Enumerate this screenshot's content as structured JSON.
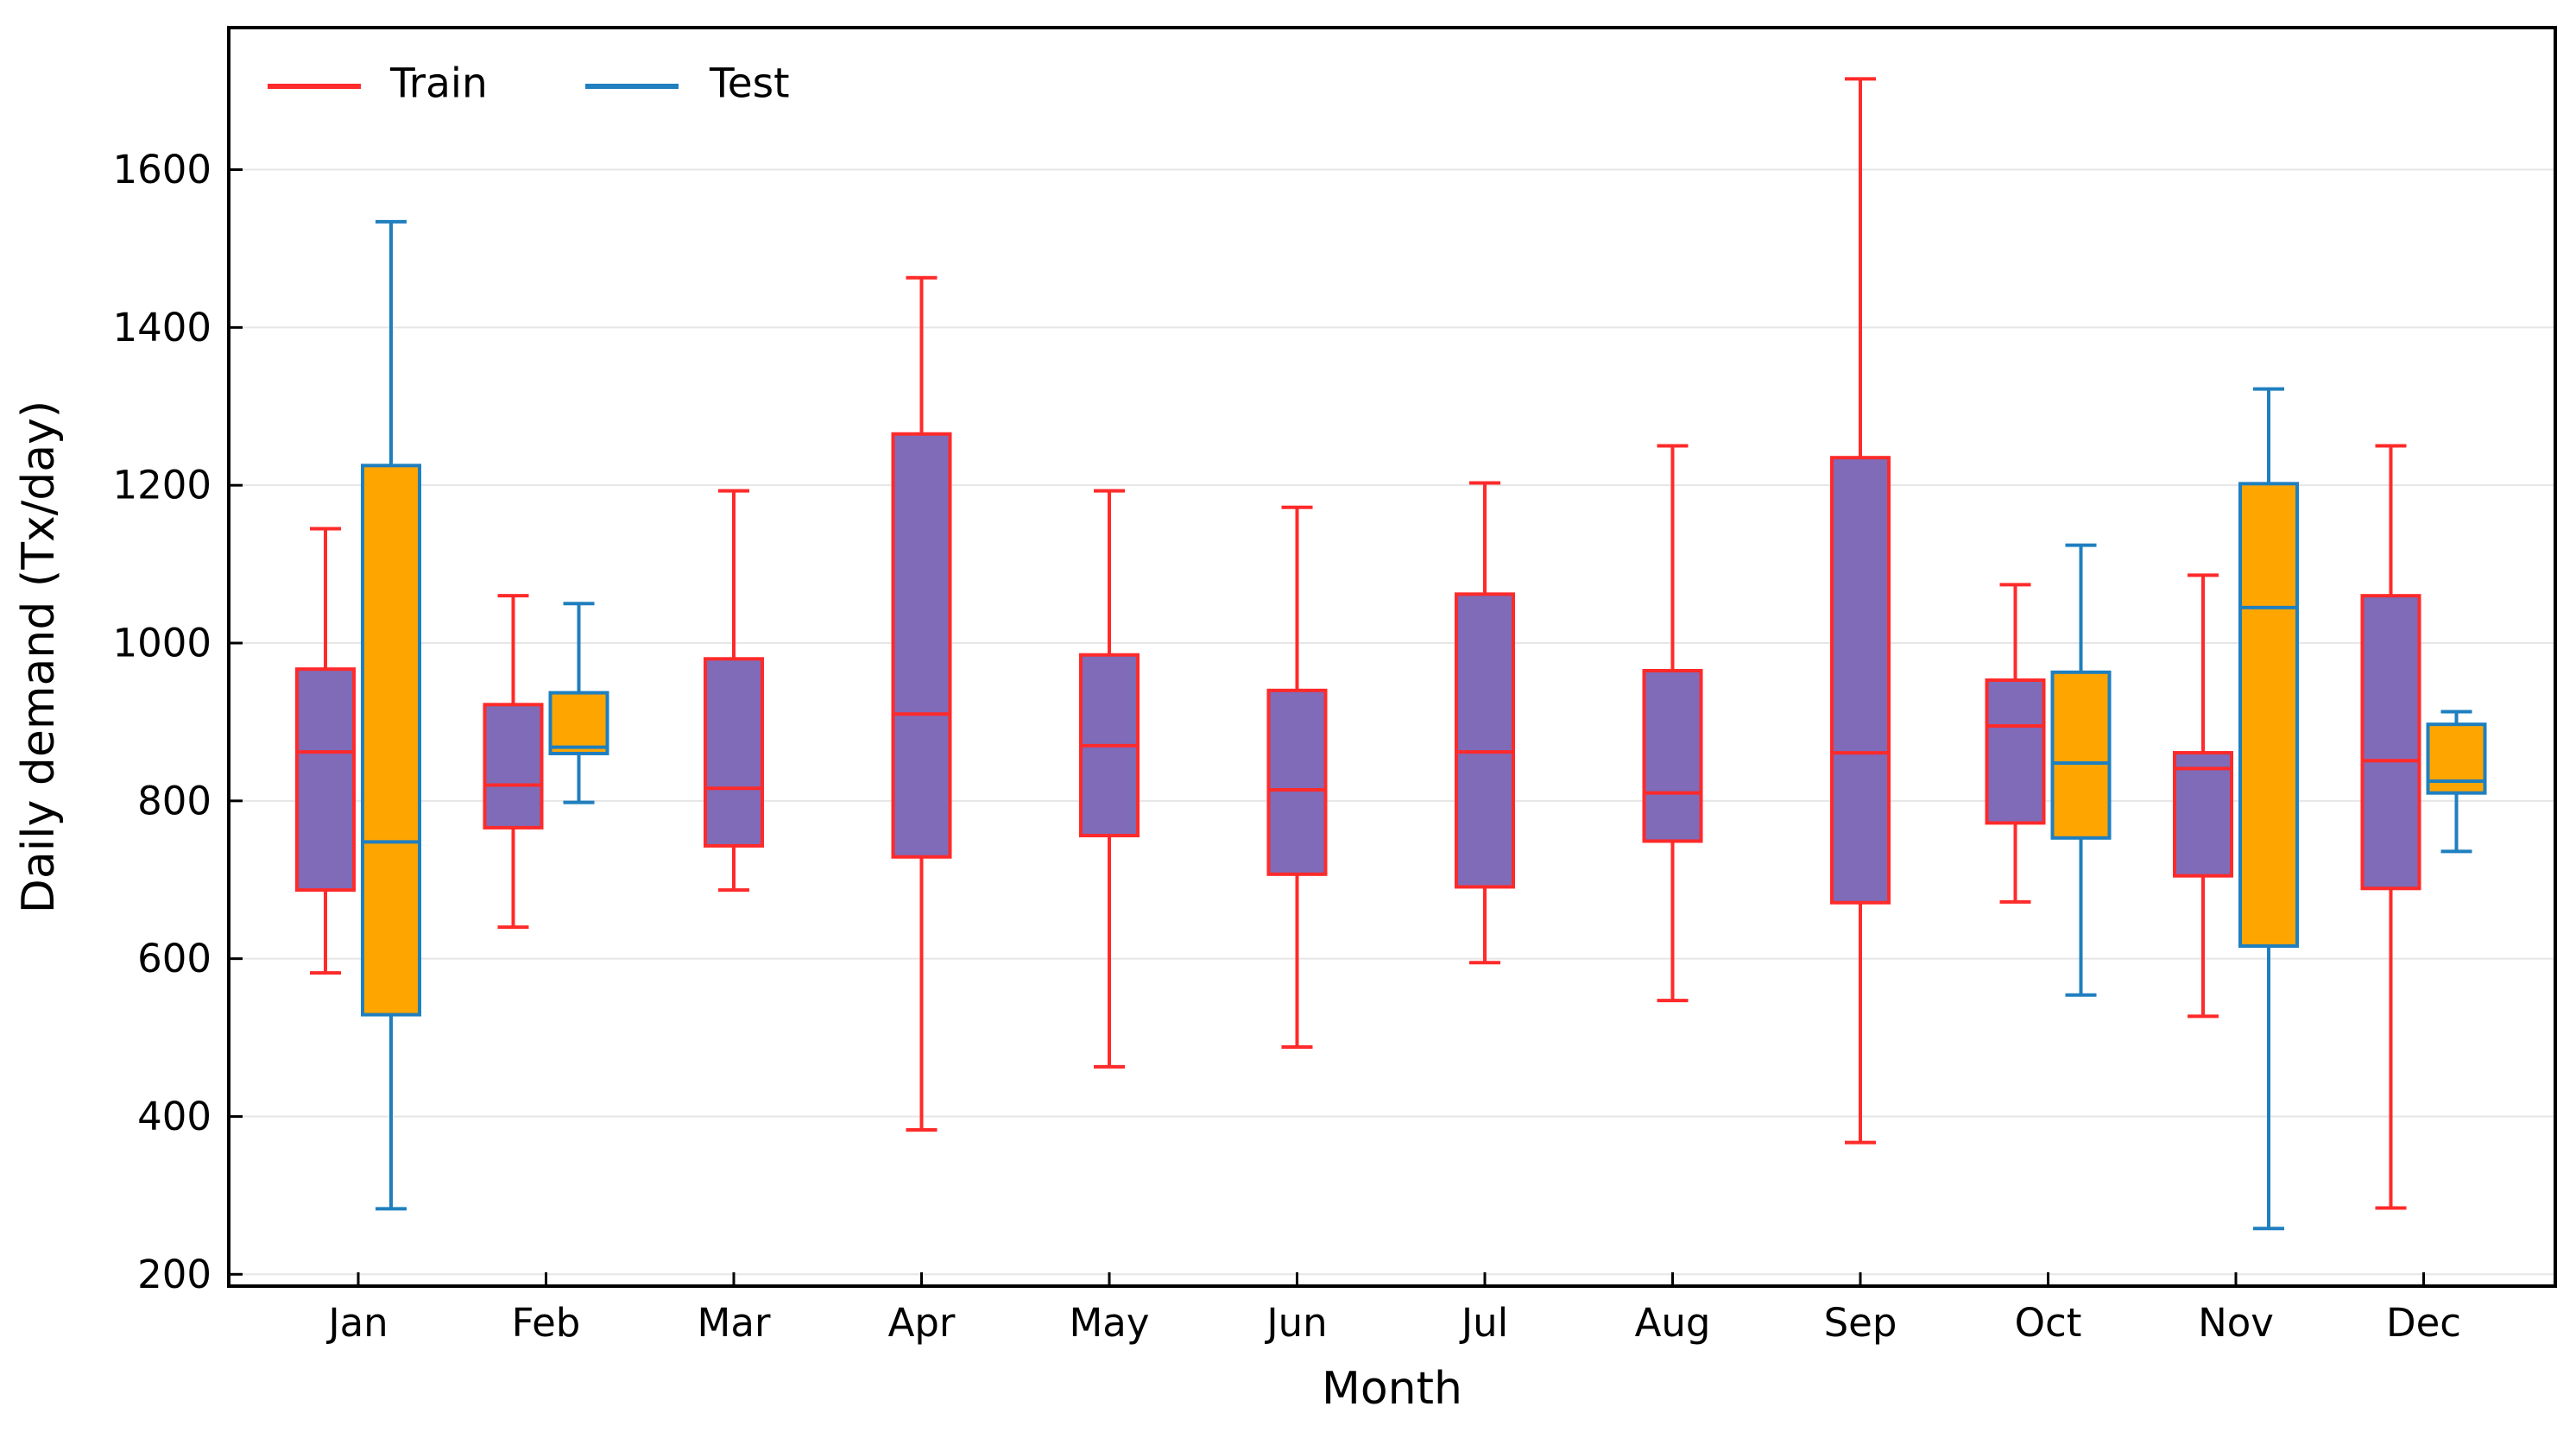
{
  "chart_data": {
    "type": "box",
    "title": "",
    "xlabel": "Month",
    "ylabel": "Daily demand (Tx/day)",
    "ylim": [
      185,
      1780
    ],
    "yticks": [
      200,
      400,
      600,
      800,
      1000,
      1200,
      1400,
      1600
    ],
    "grid": "horizontal",
    "legend_position": "top-left",
    "categories": [
      "Jan",
      "Feb",
      "Mar",
      "Apr",
      "May",
      "Jun",
      "Jul",
      "Aug",
      "Sep",
      "Oct",
      "Nov",
      "Dec"
    ],
    "series": [
      {
        "name": "Train",
        "edge_color": "#ff2a2a",
        "fill_color": "#7f6bb8",
        "boxes": [
          {
            "category": "Jan",
            "min": 582,
            "q1": 687,
            "median": 862,
            "q3": 967,
            "max": 1145
          },
          {
            "category": "Feb",
            "min": 640,
            "q1": 766,
            "median": 820,
            "q3": 922,
            "max": 1060
          },
          {
            "category": "Mar",
            "min": 687,
            "q1": 743,
            "median": 816,
            "q3": 980,
            "max": 1193
          },
          {
            "category": "Apr",
            "min": 383,
            "q1": 729,
            "median": 910,
            "q3": 1265,
            "max": 1463
          },
          {
            "category": "May",
            "min": 463,
            "q1": 756,
            "median": 870,
            "q3": 985,
            "max": 1193
          },
          {
            "category": "Jun",
            "min": 488,
            "q1": 707,
            "median": 814,
            "q3": 940,
            "max": 1172
          },
          {
            "category": "Jul",
            "min": 595,
            "q1": 691,
            "median": 862,
            "q3": 1062,
            "max": 1203
          },
          {
            "category": "Aug",
            "min": 547,
            "q1": 749,
            "median": 810,
            "q3": 965,
            "max": 1250
          },
          {
            "category": "Sep",
            "min": 367,
            "q1": 671,
            "median": 861,
            "q3": 1235,
            "max": 1715
          },
          {
            "category": "Oct",
            "min": 672,
            "q1": 772,
            "median": 895,
            "q3": 953,
            "max": 1074
          },
          {
            "category": "Nov",
            "min": 527,
            "q1": 705,
            "median": 841,
            "q3": 861,
            "max": 1086
          },
          {
            "category": "Dec",
            "min": 284,
            "q1": 689,
            "median": 851,
            "q3": 1060,
            "max": 1250
          }
        ]
      },
      {
        "name": "Test",
        "edge_color": "#1f7fbf",
        "fill_color": "#ffa500",
        "boxes": [
          {
            "category": "Jan",
            "min": 283,
            "q1": 529,
            "median": 748,
            "q3": 1225,
            "max": 1534
          },
          {
            "category": "Feb",
            "min": 798,
            "q1": 860,
            "median": 868,
            "q3": 937,
            "max": 1050
          },
          {
            "category": "Oct",
            "min": 554,
            "q1": 753,
            "median": 848,
            "q3": 963,
            "max": 1124
          },
          {
            "category": "Nov",
            "min": 258,
            "q1": 616,
            "median": 1045,
            "q3": 1202,
            "max": 1322
          },
          {
            "category": "Dec",
            "min": 736,
            "q1": 810,
            "median": 825,
            "q3": 897,
            "max": 913
          }
        ]
      }
    ]
  }
}
